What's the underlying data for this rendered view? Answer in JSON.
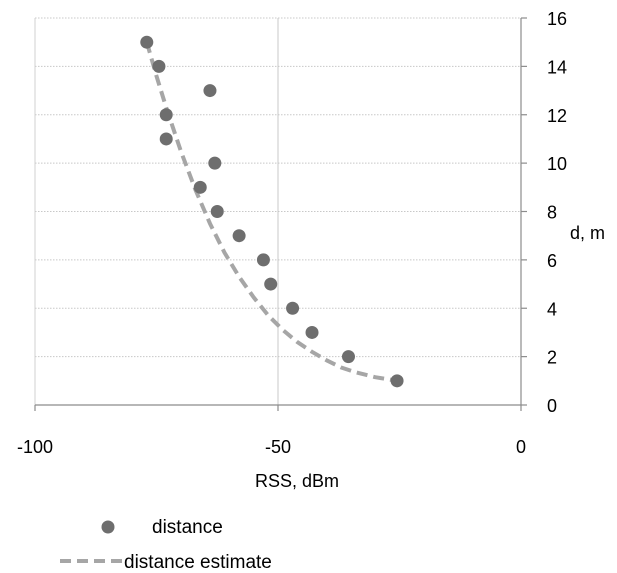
{
  "chart_data": {
    "type": "scatter",
    "xlabel": "RSS, dBm",
    "ylabel": "d, m",
    "xlim": [
      -100,
      0
    ],
    "ylim": [
      0,
      16
    ],
    "xticks": [
      -100,
      -50,
      0
    ],
    "yticks": [
      0,
      2,
      4,
      6,
      8,
      10,
      12,
      14,
      16
    ],
    "y_axis_side": "right",
    "grid": "horizontal dotted, vertical at -50",
    "legend_position": "bottom",
    "series": [
      {
        "name": "distance",
        "kind": "scatter",
        "color": "#6e6e6e",
        "points": [
          {
            "x": -77,
            "y": 15
          },
          {
            "x": -74.5,
            "y": 14
          },
          {
            "x": -64,
            "y": 13
          },
          {
            "x": -73,
            "y": 12
          },
          {
            "x": -73,
            "y": 11
          },
          {
            "x": -63,
            "y": 10
          },
          {
            "x": -66,
            "y": 9
          },
          {
            "x": -62.5,
            "y": 8
          },
          {
            "x": -58,
            "y": 7
          },
          {
            "x": -53,
            "y": 6
          },
          {
            "x": -51.5,
            "y": 5
          },
          {
            "x": -47,
            "y": 4
          },
          {
            "x": -43,
            "y": 3
          },
          {
            "x": -35.5,
            "y": 2
          },
          {
            "x": -25.5,
            "y": 1
          }
        ]
      },
      {
        "name": "distance estimate",
        "kind": "line",
        "style": "dashed",
        "color": "#a6a6a6",
        "points": [
          {
            "x": -77,
            "y": 15
          },
          {
            "x": -75,
            "y": 13.6
          },
          {
            "x": -73,
            "y": 12.3
          },
          {
            "x": -70,
            "y": 10.5
          },
          {
            "x": -67,
            "y": 8.9
          },
          {
            "x": -64,
            "y": 7.5
          },
          {
            "x": -61,
            "y": 6.3
          },
          {
            "x": -58,
            "y": 5.3
          },
          {
            "x": -55,
            "y": 4.45
          },
          {
            "x": -52,
            "y": 3.7
          },
          {
            "x": -49,
            "y": 3.1
          },
          {
            "x": -46,
            "y": 2.6
          },
          {
            "x": -43,
            "y": 2.2
          },
          {
            "x": -40,
            "y": 1.85
          },
          {
            "x": -37,
            "y": 1.55
          },
          {
            "x": -34,
            "y": 1.35
          },
          {
            "x": -30,
            "y": 1.15
          },
          {
            "x": -25.5,
            "y": 1
          }
        ]
      }
    ]
  }
}
